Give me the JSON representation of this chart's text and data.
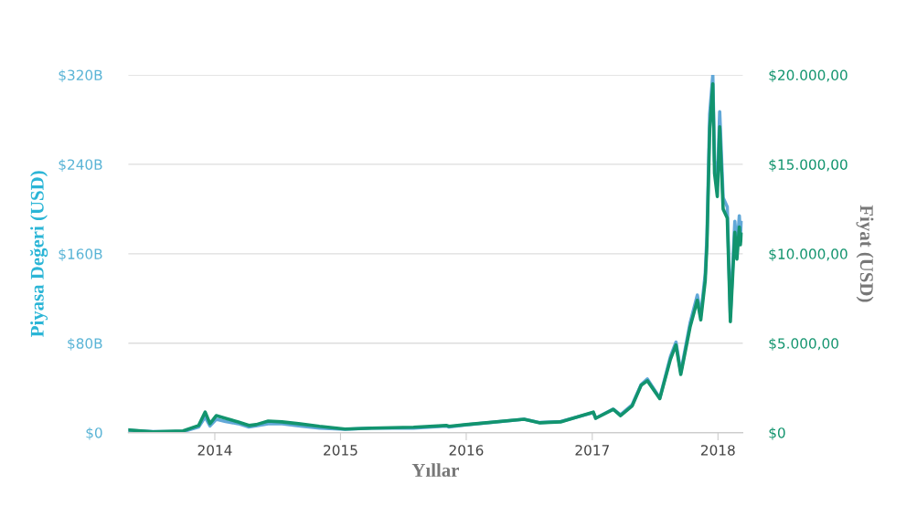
{
  "chart_data": {
    "type": "line",
    "xlabel": "Yıllar",
    "ylabel": "Piyasa Değeri (USD)",
    "y2label": "Fiyat (USD)",
    "x": [
      "2013-04-28",
      "2013-07-05",
      "2013-10-01",
      "2013-11-15",
      "2013-12-04",
      "2013-12-18",
      "2014-01-05",
      "2014-02-01",
      "2014-03-10",
      "2014-04-10",
      "2014-05-01",
      "2014-06-05",
      "2014-07-15",
      "2014-09-01",
      "2014-11-01",
      "2015-01-14",
      "2015-04-01",
      "2015-08-01",
      "2015-11-04",
      "2015-11-12",
      "2016-01-01",
      "2016-06-17",
      "2016-08-02",
      "2016-10-01",
      "2017-01-04",
      "2017-01-11",
      "2017-03-03",
      "2017-03-24",
      "2017-04-27",
      "2017-05-23",
      "2017-06-10",
      "2017-07-16",
      "2017-08-16",
      "2017-09-01",
      "2017-09-15",
      "2017-10-12",
      "2017-11-02",
      "2017-11-12",
      "2017-11-25",
      "2017-11-30",
      "2017-12-08",
      "2017-12-17",
      "2017-12-22",
      "2017-12-30",
      "2018-01-06",
      "2018-01-16",
      "2018-01-28",
      "2018-02-06",
      "2018-02-19",
      "2018-02-25",
      "2018-03-04",
      "2018-03-07",
      "2018-03-10"
    ],
    "series": [
      {
        "color": "#62a8d8",
        "values": [
          2,
          1,
          1,
          5,
          14,
          6,
          12,
          10,
          8,
          5,
          6,
          8,
          8,
          6,
          4,
          3,
          4,
          4,
          6,
          5,
          7,
          12,
          9,
          10,
          18,
          13,
          21,
          16,
          25,
          43,
          48,
          31,
          68,
          81,
          54,
          98,
          123,
          105,
          142,
          176,
          285,
          320,
          243,
          221,
          287,
          210,
          202,
          104,
          189,
          164,
          194,
          177,
          188
        ]
      },
      {
        "color": "#12946e",
        "axis": "y2",
        "values": [
          150,
          50,
          100,
          400,
          1150,
          500,
          950,
          800,
          600,
          400,
          450,
          650,
          600,
          500,
          350,
          200,
          250,
          300,
          400,
          350,
          450,
          750,
          550,
          600,
          1150,
          800,
          1300,
          950,
          1500,
          2650,
          2900,
          1900,
          4100,
          4900,
          3250,
          5900,
          7400,
          6300,
          8500,
          10500,
          17000,
          19500,
          14500,
          13200,
          17100,
          12500,
          12000,
          6200,
          11200,
          9700,
          11500,
          10500,
          11100
        ]
      }
    ],
    "xlim": [
      "2013-04-25",
      "2018-03-14"
    ],
    "xticks": [
      {
        "value": "2014-01-01",
        "label": "2014"
      },
      {
        "value": "2015-01-01",
        "label": "2015"
      },
      {
        "value": "2016-01-01",
        "label": "2016"
      },
      {
        "value": "2017-01-01",
        "label": "2017"
      },
      {
        "value": "2018-01-01",
        "label": "2018"
      }
    ],
    "ylim": [
      0,
      320
    ],
    "yticks": [
      {
        "value": 0,
        "label": "$0"
      },
      {
        "value": 80,
        "label": "$80B"
      },
      {
        "value": 160,
        "label": "$160B"
      },
      {
        "value": 240,
        "label": "$240B"
      },
      {
        "value": 320,
        "label": "$320B"
      }
    ],
    "y2lim": [
      0,
      20000
    ],
    "y2ticks": [
      {
        "value": 0,
        "label": "$0"
      },
      {
        "value": 5000,
        "label": "$5.000,00"
      },
      {
        "value": 10000,
        "label": "$10.000,00"
      },
      {
        "value": 15000,
        "label": "$15.000,00"
      },
      {
        "value": 20000,
        "label": "$20.000,00"
      }
    ],
    "grid": "y",
    "legend": false
  }
}
